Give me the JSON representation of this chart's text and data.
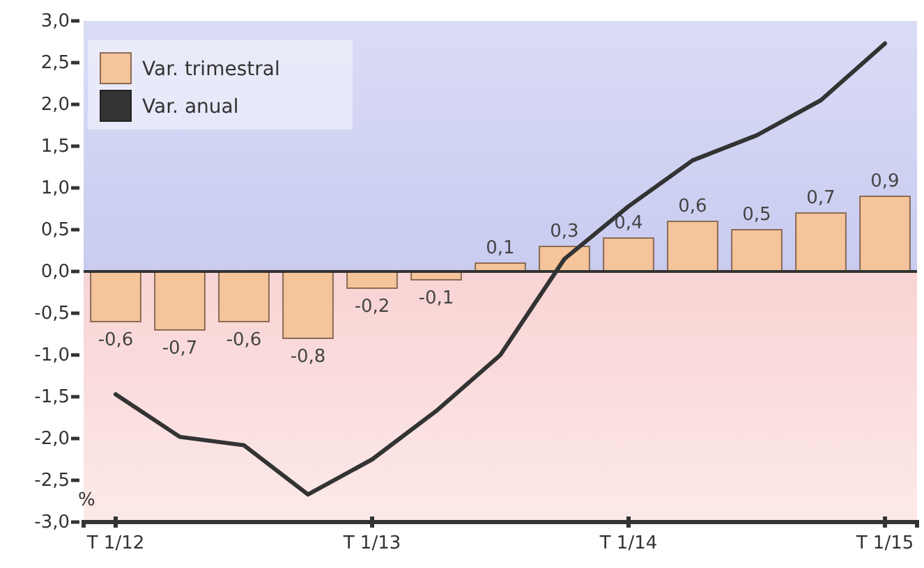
{
  "chart_data": {
    "type": "bar",
    "ylabel": "%",
    "categories": [
      "T 1/12",
      null,
      null,
      null,
      "T 1/13",
      null,
      null,
      null,
      "T 1/14",
      null,
      null,
      null,
      "T 1/15"
    ],
    "series": [
      {
        "name": "Var. trimestral",
        "color": "#f5c49a",
        "values": [
          -0.6,
          -0.7,
          -0.6,
          -0.8,
          -0.2,
          -0.1,
          0.1,
          0.3,
          0.4,
          0.6,
          0.5,
          0.7,
          0.9
        ],
        "value_labels": [
          "-0,6",
          "-0,7",
          "-0,6",
          "-0,8",
          "-0,2",
          "-0,1",
          "0,1",
          "0,3",
          "0,4",
          "0,6",
          "0,5",
          "0,7",
          "0,9"
        ]
      },
      {
        "name": "Var. anual",
        "type": "line",
        "color": "#333333",
        "values": [
          -1.47,
          -1.98,
          -2.08,
          -2.67,
          -2.25,
          -1.67,
          -1.0,
          0.15,
          0.78,
          1.33,
          1.63,
          2.05,
          2.73
        ]
      }
    ],
    "ylim": [
      -3,
      3
    ],
    "yticks": [
      {
        "value": -3,
        "label": "-3,0"
      },
      {
        "value": -2.5,
        "label": "-2,5"
      },
      {
        "value": -2,
        "label": "-2,0"
      },
      {
        "value": -1.5,
        "label": "-1,5"
      },
      {
        "value": -1,
        "label": "-1,0"
      },
      {
        "value": -0.5,
        "label": "-0,5"
      },
      {
        "value": 0,
        "label": "0,0"
      },
      {
        "value": 0.5,
        "label": "0,5"
      },
      {
        "value": 1,
        "label": "1,0"
      },
      {
        "value": 1.5,
        "label": "1,5"
      },
      {
        "value": 2,
        "label": "2,0"
      },
      {
        "value": 2.5,
        "label": "2,5"
      },
      {
        "value": 3,
        "label": "3,0"
      }
    ],
    "legend": "top left"
  }
}
